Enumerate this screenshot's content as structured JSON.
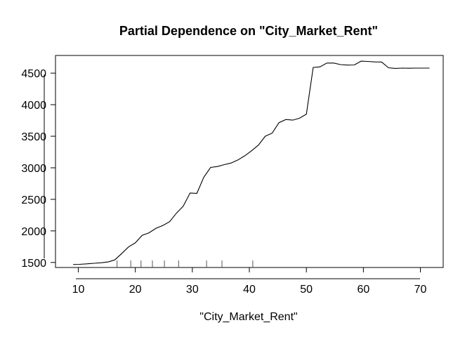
{
  "chart_data": {
    "type": "line",
    "title": "Partial Dependence on \"City_Market_Rent\"",
    "xlabel": "\"City_Market_Rent\"",
    "ylabel": "",
    "xlim": [
      6,
      74
    ],
    "ylim": [
      1420,
      4780
    ],
    "xticks": [
      10,
      20,
      30,
      40,
      50,
      60,
      70
    ],
    "yticks": [
      1500,
      2000,
      2500,
      3000,
      3500,
      4000,
      4500
    ],
    "x": [
      9.1,
      10.2,
      11.5,
      12.8,
      14.1,
      15.3,
      16.4,
      17.6,
      18.8,
      20.0,
      21.2,
      22.4,
      23.6,
      24.8,
      26.0,
      27.2,
      28.4,
      29.6,
      30.8,
      32.0,
      33.2,
      34.4,
      35.6,
      36.8,
      38.0,
      39.2,
      40.4,
      41.6,
      42.8,
      44.0,
      45.2,
      46.4,
      47.6,
      48.8,
      50.0,
      51.2,
      52.4,
      53.6,
      54.8,
      56.0,
      57.2,
      58.4,
      59.6,
      60.8,
      62.0,
      63.2,
      64.4,
      65.6,
      66.8,
      68.0,
      69.2,
      70.4,
      71.6
    ],
    "series": [
      {
        "values": [
          1468,
          1470,
          1478,
          1487,
          1496,
          1510,
          1540,
          1640,
          1745,
          1810,
          1930,
          1970,
          2040,
          2085,
          2145,
          2280,
          2390,
          2600,
          2595,
          2850,
          3005,
          3020,
          3050,
          3075,
          3125,
          3190,
          3270,
          3360,
          3500,
          3550,
          3715,
          3765,
          3755,
          3785,
          3850,
          4590,
          4600,
          4660,
          4660,
          4635,
          4628,
          4630,
          4690,
          4685,
          4678,
          4676,
          4585,
          4575,
          4580,
          4578,
          4580,
          4580,
          4580
        ]
      }
    ],
    "rug": [
      16.8,
      19.2,
      21.0,
      23.0,
      25.1,
      27.6,
      32.5,
      35.2,
      40.6
    ],
    "grid": false
  }
}
